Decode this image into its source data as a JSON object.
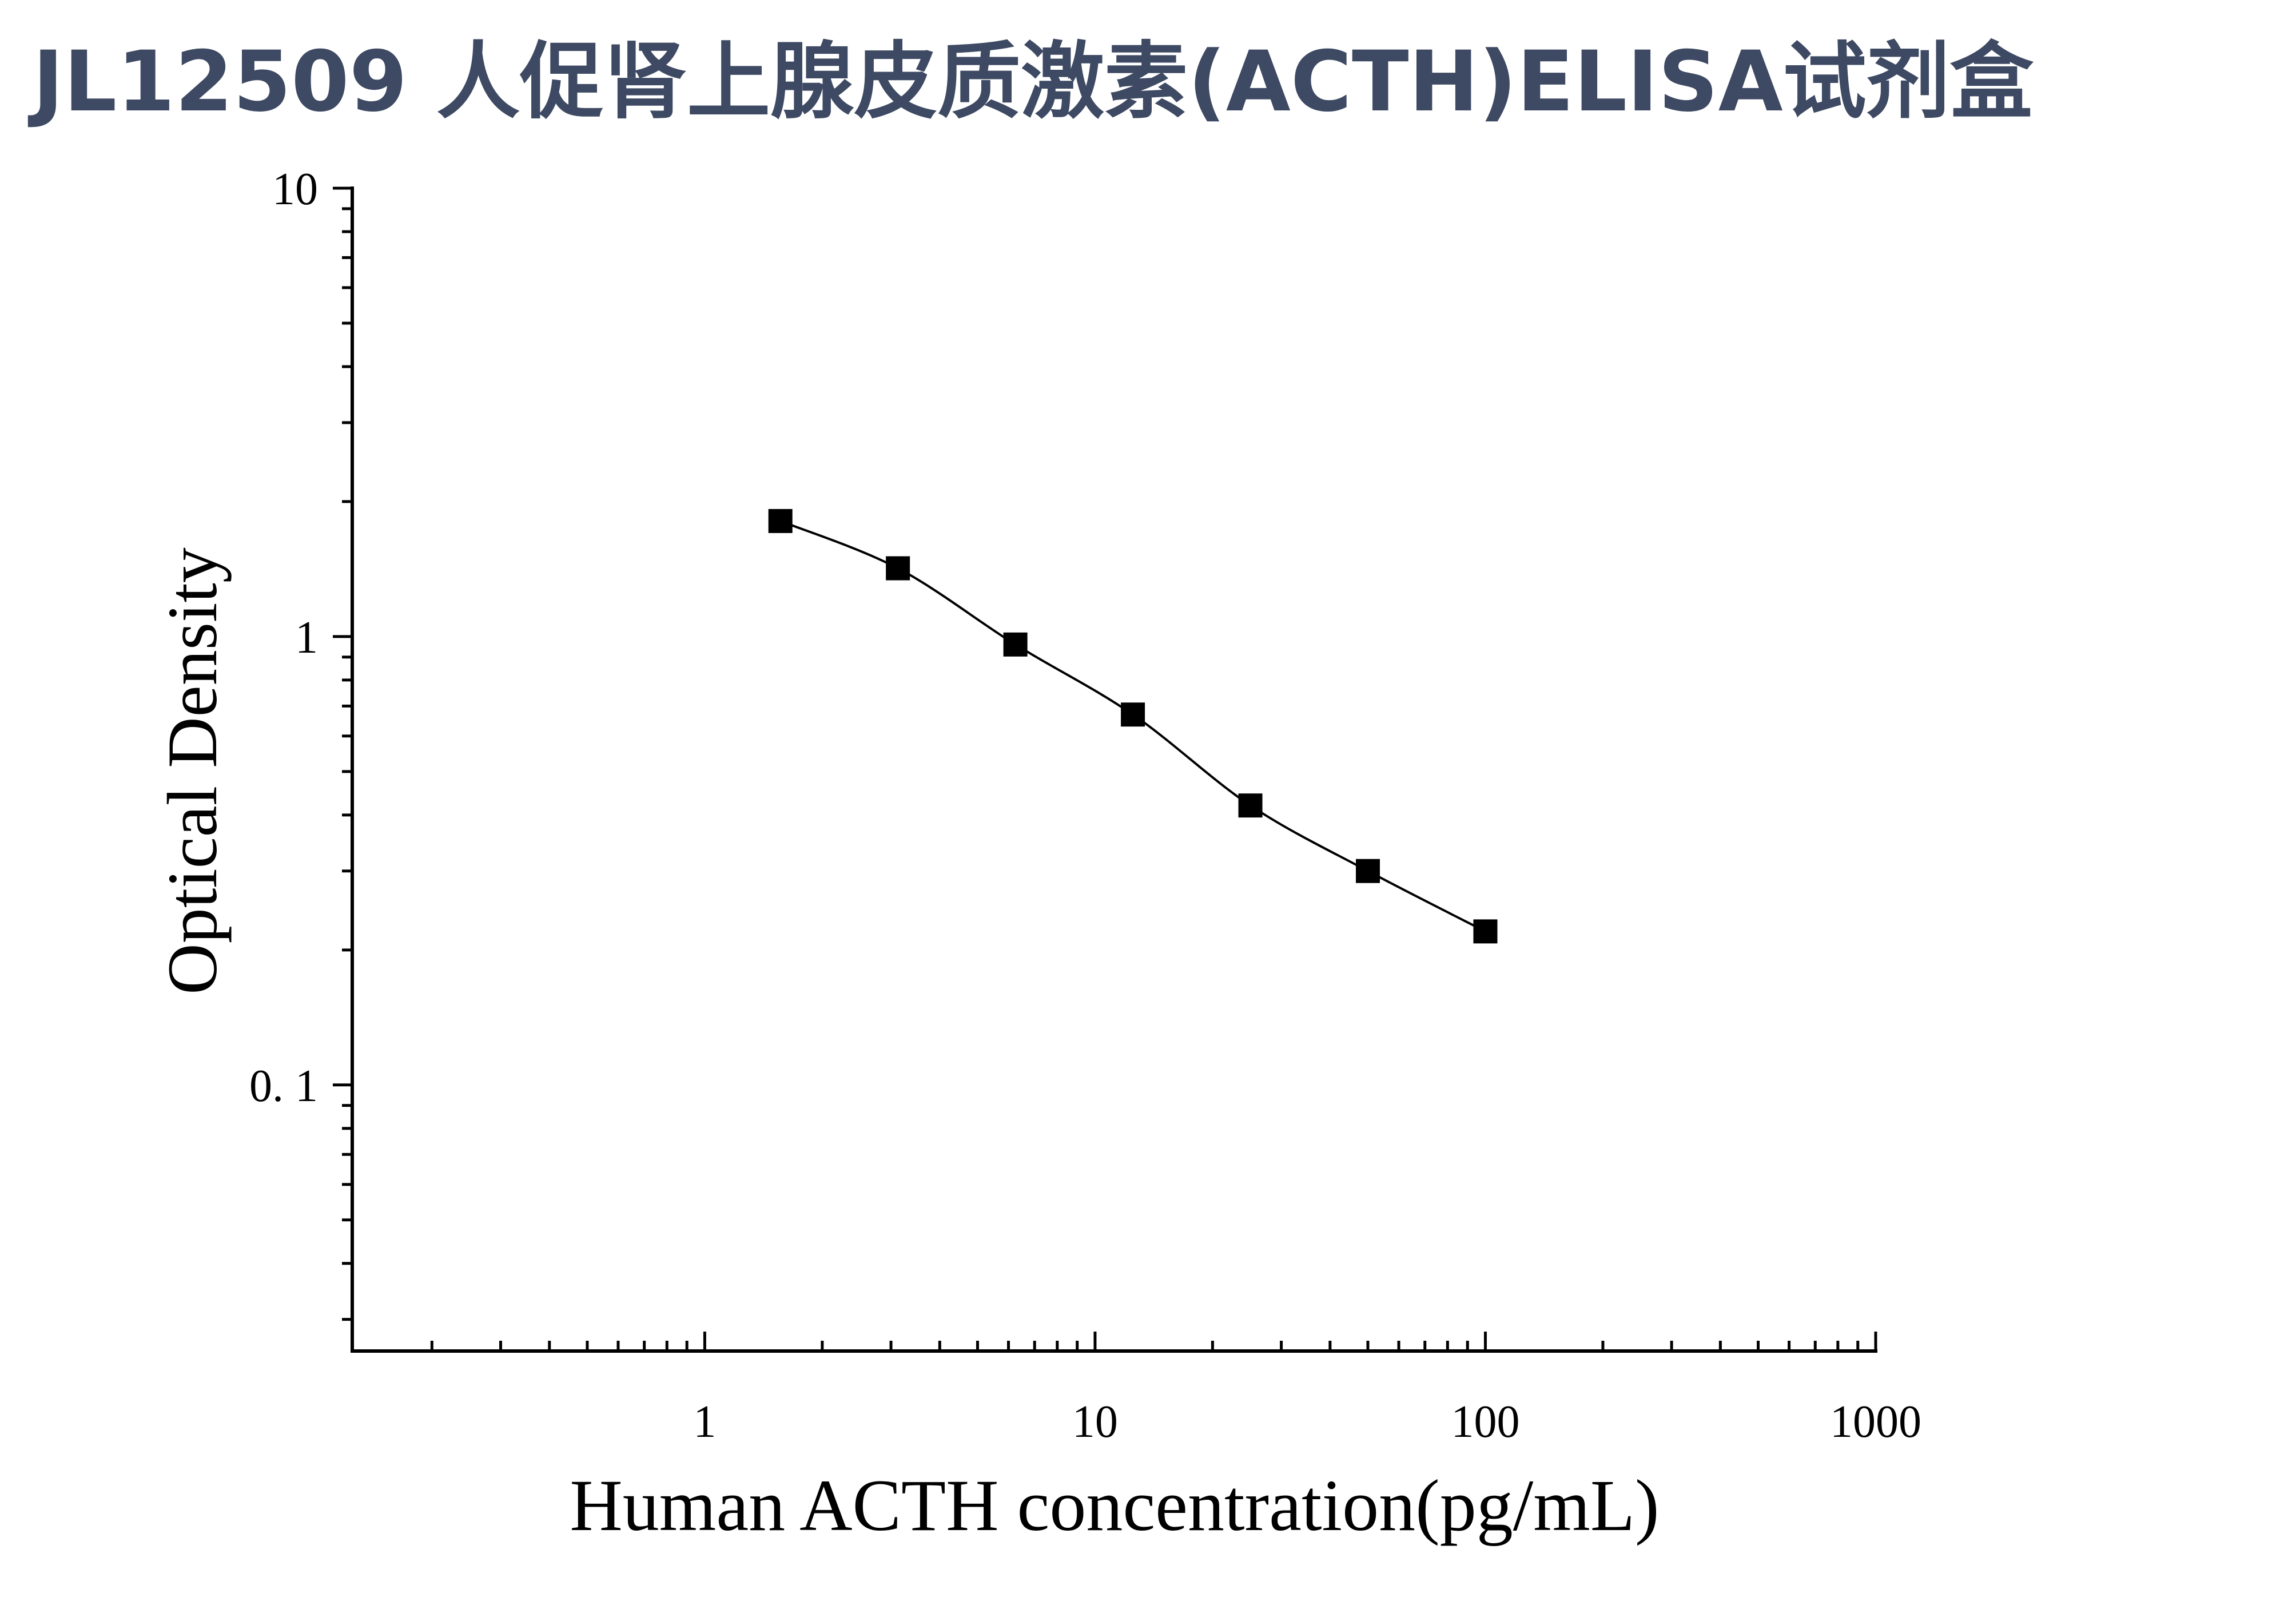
{
  "colors": {
    "title": "#3e4a63",
    "axis": "#000000",
    "marker": "#000000",
    "background": "#ffffff"
  },
  "chart_data": {
    "type": "scatter",
    "title": "JL12509 人促肾上腺皮质激素(ACTH)ELISA试剂盒",
    "xlabel": "Human ACTH concentration(pg/mL)",
    "ylabel": "Optical Density",
    "xscale": "log",
    "yscale": "log",
    "xlim": [
      0.125,
      1000
    ],
    "ylim": [
      0.0255,
      10
    ],
    "xticks": [
      1,
      10,
      100,
      1000
    ],
    "xtick_labels": [
      "1",
      "10",
      "100",
      "1000"
    ],
    "yticks": [
      0.1,
      1,
      10
    ],
    "ytick_labels": [
      "0. 1",
      "1",
      "10"
    ],
    "grid": false,
    "legend": "none",
    "marker": "square",
    "fit_curve": true,
    "series": [
      {
        "x": [
          1.5625,
          3.125,
          6.25,
          12.5,
          25,
          50,
          100
        ],
        "y": [
          1.81,
          1.42,
          0.96,
          0.67,
          0.42,
          0.3,
          0.22
        ]
      }
    ]
  }
}
